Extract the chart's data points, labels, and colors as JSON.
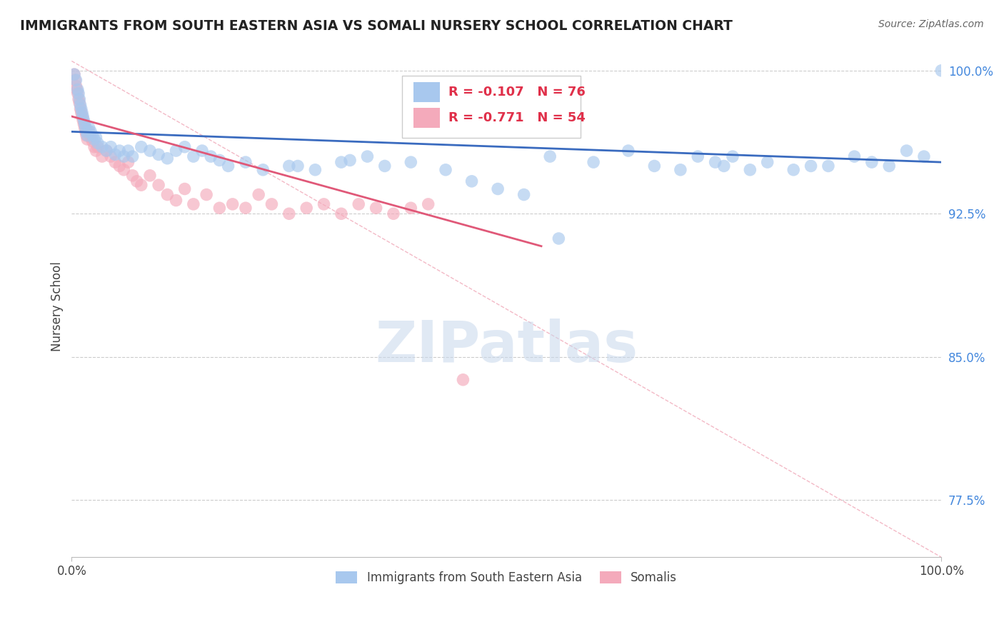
{
  "title": "IMMIGRANTS FROM SOUTH EASTERN ASIA VS SOMALI NURSERY SCHOOL CORRELATION CHART",
  "source": "Source: ZipAtlas.com",
  "ylabel": "Nursery School",
  "xlim": [
    0.0,
    1.0
  ],
  "ylim": [
    0.745,
    1.008
  ],
  "yticks": [
    0.775,
    0.85,
    0.925,
    1.0
  ],
  "ytick_labels": [
    "77.5%",
    "85.0%",
    "92.5%",
    "100.0%"
  ],
  "xtick_labels": [
    "0.0%",
    "100.0%"
  ],
  "blue_color": "#A8C8EE",
  "pink_color": "#F4AABB",
  "blue_line_color": "#3A6BBF",
  "pink_line_color": "#E05878",
  "dash_line_color": "#F0A8B8",
  "legend_text_color": "#E0304A",
  "legend_R_blue": "R = -0.107",
  "legend_N_blue": "N = 76",
  "legend_R_pink": "R = -0.771",
  "legend_N_pink": "N = 54",
  "legend_label_blue": "Immigrants from South Eastern Asia",
  "legend_label_pink": "Somalis",
  "watermark": "ZIPatlas",
  "blue_line_x": [
    0.0,
    1.0
  ],
  "blue_line_y": [
    0.968,
    0.952
  ],
  "pink_line_x": [
    0.0,
    0.54
  ],
  "pink_line_y": [
    0.976,
    0.908
  ],
  "dash_line_x": [
    0.0,
    1.0
  ],
  "dash_line_y": [
    1.005,
    0.745
  ],
  "blue_scatter_x": [
    0.003,
    0.005,
    0.007,
    0.008,
    0.009,
    0.01,
    0.011,
    0.012,
    0.013,
    0.014,
    0.015,
    0.016,
    0.017,
    0.018,
    0.02,
    0.022,
    0.024,
    0.026,
    0.028,
    0.03,
    0.035,
    0.04,
    0.045,
    0.05,
    0.055,
    0.06,
    0.065,
    0.07,
    0.08,
    0.09,
    0.1,
    0.11,
    0.12,
    0.13,
    0.14,
    0.15,
    0.16,
    0.17,
    0.18,
    0.2,
    0.22,
    0.25,
    0.28,
    0.31,
    0.34,
    0.36,
    0.39,
    0.55,
    0.6,
    0.64,
    0.67,
    0.7,
    0.72,
    0.74,
    0.75,
    0.76,
    0.78,
    0.8,
    0.83,
    0.85,
    0.87,
    0.9,
    0.92,
    0.94,
    0.96,
    0.98,
    1.0,
    0.46,
    0.49,
    0.52,
    0.56,
    0.43,
    0.32,
    0.26
  ],
  "blue_scatter_y": [
    0.998,
    0.995,
    0.99,
    0.988,
    0.985,
    0.982,
    0.98,
    0.978,
    0.976,
    0.974,
    0.972,
    0.97,
    0.968,
    0.966,
    0.97,
    0.968,
    0.966,
    0.964,
    0.965,
    0.962,
    0.96,
    0.958,
    0.96,
    0.956,
    0.958,
    0.955,
    0.958,
    0.955,
    0.96,
    0.958,
    0.956,
    0.954,
    0.958,
    0.96,
    0.955,
    0.958,
    0.955,
    0.953,
    0.95,
    0.952,
    0.948,
    0.95,
    0.948,
    0.952,
    0.955,
    0.95,
    0.952,
    0.955,
    0.952,
    0.958,
    0.95,
    0.948,
    0.955,
    0.952,
    0.95,
    0.955,
    0.948,
    0.952,
    0.948,
    0.95,
    0.95,
    0.955,
    0.952,
    0.95,
    0.958,
    0.955,
    1.0,
    0.942,
    0.938,
    0.935,
    0.912,
    0.948,
    0.953,
    0.95
  ],
  "pink_scatter_x": [
    0.003,
    0.004,
    0.005,
    0.006,
    0.007,
    0.008,
    0.009,
    0.01,
    0.011,
    0.012,
    0.013,
    0.014,
    0.015,
    0.016,
    0.017,
    0.018,
    0.02,
    0.022,
    0.024,
    0.026,
    0.028,
    0.03,
    0.035,
    0.04,
    0.045,
    0.05,
    0.055,
    0.06,
    0.065,
    0.07,
    0.075,
    0.08,
    0.09,
    0.1,
    0.11,
    0.12,
    0.13,
    0.14,
    0.155,
    0.17,
    0.185,
    0.2,
    0.215,
    0.23,
    0.25,
    0.27,
    0.29,
    0.31,
    0.33,
    0.35,
    0.37,
    0.39,
    0.41,
    0.45
  ],
  "pink_scatter_y": [
    0.998,
    0.995,
    0.992,
    0.99,
    0.988,
    0.985,
    0.983,
    0.98,
    0.978,
    0.976,
    0.974,
    0.972,
    0.97,
    0.968,
    0.966,
    0.964,
    0.968,
    0.965,
    0.963,
    0.96,
    0.958,
    0.96,
    0.955,
    0.958,
    0.955,
    0.952,
    0.95,
    0.948,
    0.952,
    0.945,
    0.942,
    0.94,
    0.945,
    0.94,
    0.935,
    0.932,
    0.938,
    0.93,
    0.935,
    0.928,
    0.93,
    0.928,
    0.935,
    0.93,
    0.925,
    0.928,
    0.93,
    0.925,
    0.93,
    0.928,
    0.925,
    0.928,
    0.93,
    0.838
  ]
}
